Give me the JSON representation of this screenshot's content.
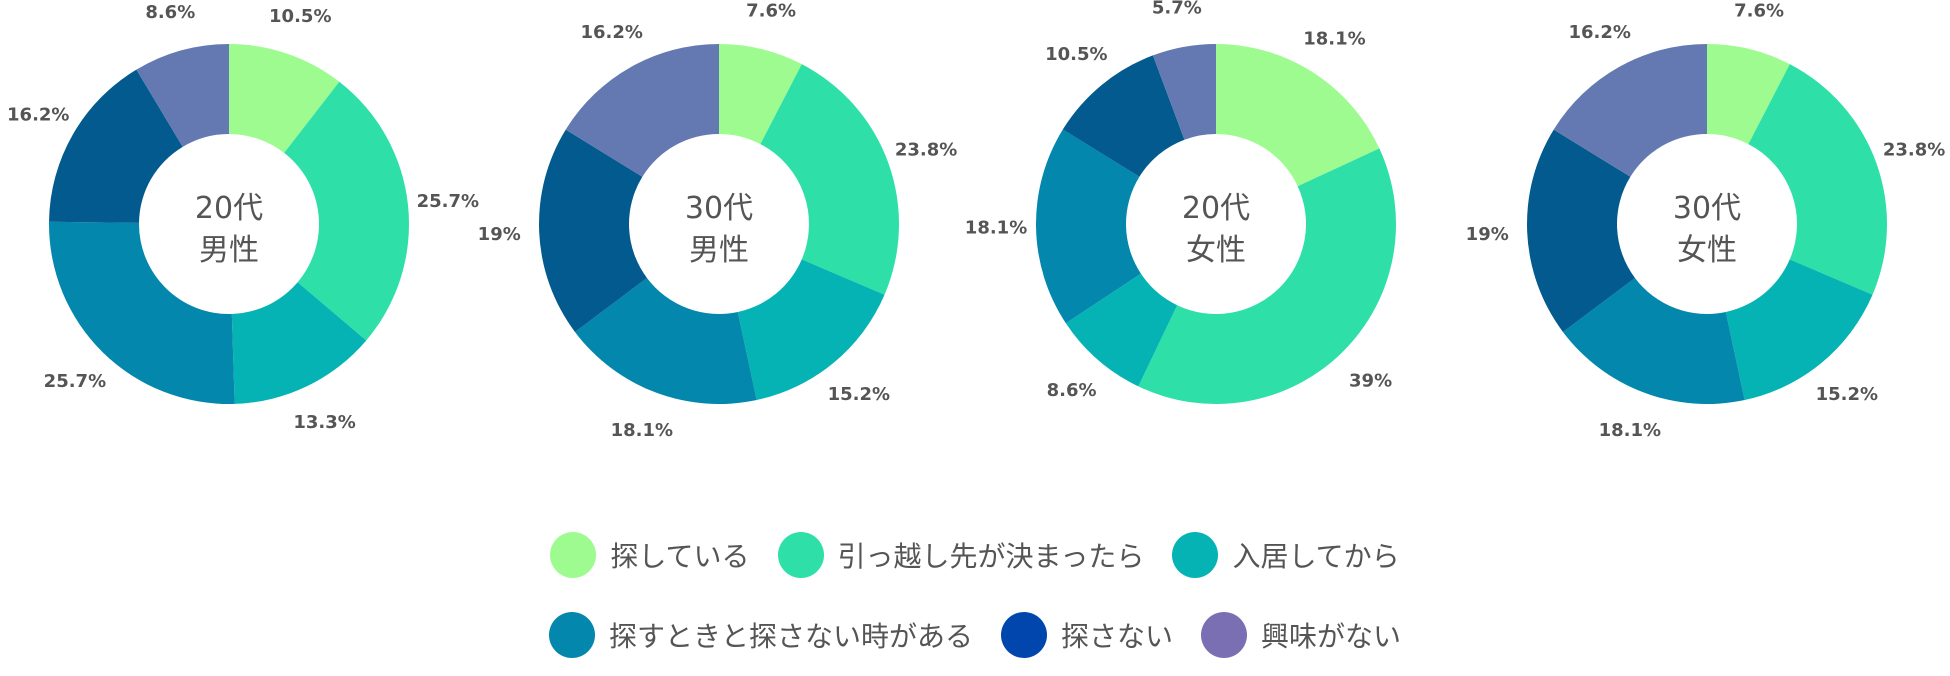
{
  "chart_data": [
    {
      "type": "pie",
      "donut": true,
      "center_label": [
        "20代",
        "男性"
      ],
      "categories": [
        "探している",
        "引っ越し先が決まったら",
        "入居してから",
        "探すときと探さない時がある",
        "探さない",
        "興味がない"
      ],
      "values": [
        10.5,
        25.7,
        13.3,
        25.7,
        16.2,
        8.6
      ],
      "labels": [
        "10.5%",
        "25.7%",
        "13.3%",
        "25.7%",
        "16.2%",
        "8.6%"
      ]
    },
    {
      "type": "pie",
      "donut": true,
      "center_label": [
        "30代",
        "男性"
      ],
      "categories": [
        "探している",
        "引っ越し先が決まったら",
        "入居してから",
        "探すときと探さない時がある",
        "探さない",
        "興味がない"
      ],
      "values": [
        7.6,
        23.8,
        15.2,
        18.1,
        19,
        16.2
      ],
      "labels": [
        "7.6%",
        "23.8%",
        "15.2%",
        "18.1%",
        "19%",
        "16.2%"
      ]
    },
    {
      "type": "pie",
      "donut": true,
      "center_label": [
        "20代",
        "女性"
      ],
      "categories": [
        "探している",
        "引っ越し先が決まったら",
        "入居してから",
        "探すときと探さない時がある",
        "探さない",
        "興味がない"
      ],
      "values": [
        18.1,
        39,
        8.6,
        18.1,
        10.5,
        5.7
      ],
      "labels": [
        "18.1%",
        "39%",
        "8.6%",
        "18.1%",
        "10.5%",
        "5.7%"
      ]
    },
    {
      "type": "pie",
      "donut": true,
      "center_label": [
        "30代",
        "女性"
      ],
      "categories": [
        "探している",
        "引っ越し先が決まったら",
        "入居してから",
        "探すときと探さない時がある",
        "探さない",
        "興味がない"
      ],
      "values": [
        7.6,
        23.8,
        15.2,
        18.1,
        19,
        16.2
      ],
      "labels": [
        "7.6%",
        "23.8%",
        "15.2%",
        "18.1%",
        "19%",
        "16.2%"
      ]
    }
  ],
  "slice_colors": [
    "#9dfb8f",
    "#2ee0a8",
    "#06b3b4",
    "#0387ad",
    "#035a8e",
    "#6479b2"
  ],
  "legend": [
    {
      "label": "探している",
      "color": "#9dfb8f"
    },
    {
      "label": "引っ越し先が決まったら",
      "color": "#2ee0a8"
    },
    {
      "label": "入居してから",
      "color": "#06b3b4"
    },
    {
      "label": "探すときと探さない時がある",
      "color": "#0387ad"
    },
    {
      "label": "探さない",
      "color": "#0046ad"
    },
    {
      "label": "興味がない",
      "color": "#7a6fb2"
    }
  ]
}
